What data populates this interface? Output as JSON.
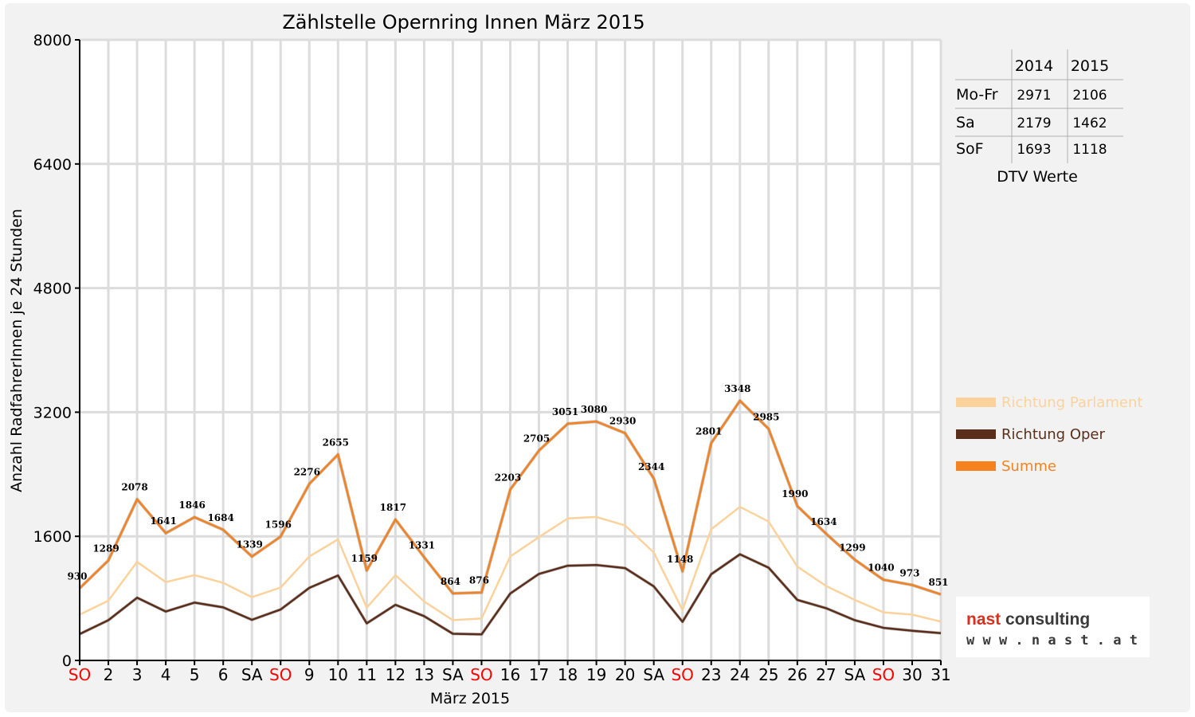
{
  "chart_data": {
    "type": "line",
    "title": "Zählstelle Opernring Innen März 2015",
    "xlabel": "März 2015",
    "ylabel": "Anzahl RadfahrerInnen je 24 Stunden",
    "ylim": [
      0,
      8000
    ],
    "yticks": [
      "0",
      "1600",
      "3200",
      "4800",
      "6400",
      "8000"
    ],
    "grid": true,
    "legend_position": "right",
    "categories": [
      "SO",
      "2",
      "3",
      "4",
      "5",
      "6",
      "SA",
      "SO",
      "9",
      "10",
      "11",
      "12",
      "13",
      "SA",
      "SO",
      "16",
      "17",
      "18",
      "19",
      "20",
      "SA",
      "SO",
      "23",
      "24",
      "25",
      "26",
      "27",
      "SA",
      "SO",
      "30",
      "31"
    ],
    "highlight_color": "#ff0000",
    "highlight_categories": [
      0,
      7,
      14,
      21,
      28
    ],
    "series": [
      {
        "name": "Richtung Parlament",
        "color": "#fcd29c",
        "values": [
          590,
          770,
          1270,
          1010,
          1100,
          1000,
          815,
          940,
          1340,
          1560,
          680,
          1100,
          760,
          520,
          540,
          1340,
          1590,
          1830,
          1850,
          1740,
          1390,
          650,
          1690,
          1980,
          1790,
          1210,
          960,
          780,
          620,
          590,
          500
        ]
      },
      {
        "name": "Richtung Oper",
        "color": "#5a2e1a",
        "values": [
          340,
          519,
          808,
          631,
          746,
          684,
          524,
          656,
          936,
          1095,
          479,
          717,
          571,
          344,
          336,
          863,
          1115,
          1221,
          1230,
          1190,
          954,
          498,
          1111,
          1368,
          1195,
          780,
          674,
          519,
          420,
          383,
          351
        ]
      },
      {
        "name": "Summe",
        "color": "#f5821f",
        "values": [
          930,
          1289,
          2078,
          1641,
          1846,
          1684,
          1339,
          1596,
          2276,
          2655,
          1159,
          1817,
          1331,
          864,
          876,
          2203,
          2705,
          3051,
          3080,
          2930,
          2344,
          1148,
          2801,
          3348,
          2985,
          1990,
          1634,
          1299,
          1040,
          973,
          851
        ]
      }
    ],
    "data_labels": [
      "930",
      "1289",
      "2078",
      "1641",
      "1846",
      "1684",
      "1339",
      "1596",
      "2276",
      "2655",
      "1159",
      "1817",
      "1331",
      "864",
      "876",
      "2203",
      "2705",
      "3051",
      "3080",
      "2930",
      "2344",
      "1148",
      "2801",
      "3348",
      "2985",
      "1990",
      "1634",
      "1299",
      "1040",
      "973",
      "851"
    ]
  },
  "dtv_table": {
    "headers": [
      "",
      "2014",
      "2015"
    ],
    "rows": [
      {
        "label": "Mo-Fr",
        "v2014": "2971",
        "v2015": "2106"
      },
      {
        "label": "Sa",
        "v2014": "2179",
        "v2015": "1462"
      },
      {
        "label": "SoF",
        "v2014": "1693",
        "v2015": "1118"
      }
    ],
    "caption": "DTV Werte"
  },
  "logo": {
    "name": "nast consulting",
    "url": "w w w . n a s t . a t"
  }
}
